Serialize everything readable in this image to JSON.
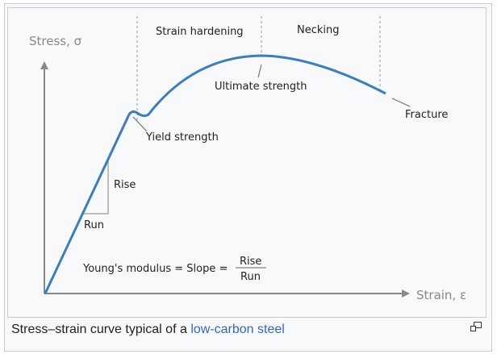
{
  "figure": {
    "y_axis_label": "Stress, σ",
    "x_axis_label": "Strain, ε",
    "regions": [
      "Strain hardening",
      "Necking"
    ],
    "annotations": {
      "ultimate": "Ultimate strength",
      "fracture": "Fracture",
      "yield": "Yield strength",
      "rise": "Rise",
      "run": "Run"
    },
    "formula": {
      "left": "Young's modulus = Slope =",
      "numerator": "Rise",
      "denominator": "Run"
    },
    "curve_color": "#3a7ebf"
  },
  "caption": {
    "text": "Stress–strain curve typical of a ",
    "link": "low-carbon steel"
  }
}
